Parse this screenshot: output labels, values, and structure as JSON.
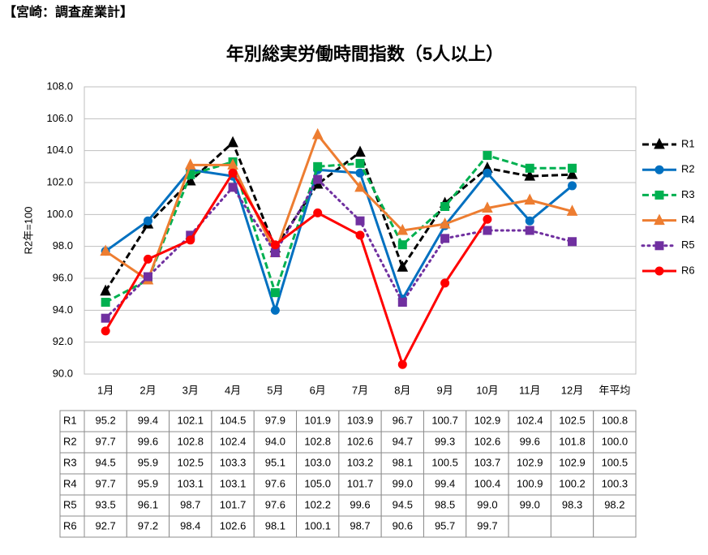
{
  "header": "【宮崎：調査産業計】",
  "chart_data": {
    "type": "line",
    "title": "年別総実労働時間指数（5人以上）",
    "y_label": "R2年=100",
    "categories": [
      "1月",
      "2月",
      "3月",
      "4月",
      "5月",
      "6月",
      "7月",
      "8月",
      "9月",
      "10月",
      "11月",
      "12月"
    ],
    "average_label": "年平均",
    "ylim": [
      90,
      108
    ],
    "yticks": [
      {
        "value": 90,
        "label": "90.0"
      },
      {
        "value": 92,
        "label": "92.0"
      },
      {
        "value": 94,
        "label": "94.0"
      },
      {
        "value": 96,
        "label": "96.0"
      },
      {
        "value": 98,
        "label": "98.0"
      },
      {
        "value": 100,
        "label": "100.0"
      },
      {
        "value": 102,
        "label": "102.0"
      },
      {
        "value": 104,
        "label": "104.0"
      },
      {
        "value": 106,
        "label": "106.0"
      },
      {
        "value": 108,
        "label": "108.0"
      }
    ],
    "grid": true,
    "legend": "right",
    "series": [
      {
        "name": "R1",
        "color": "#000000",
        "dash": "dashed",
        "marker": "triangle",
        "values": [
          95.2,
          99.4,
          102.1,
          104.5,
          97.9,
          101.9,
          103.9,
          96.7,
          100.7,
          102.9,
          102.4,
          102.5
        ],
        "value_labels": [
          "95.2",
          "99.4",
          "102.1",
          "104.5",
          "97.9",
          "101.9",
          "103.9",
          "96.7",
          "100.7",
          "102.9",
          "102.4",
          "102.5"
        ],
        "average": 100.8,
        "average_text": "100.8"
      },
      {
        "name": "R2",
        "color": "#0070c0",
        "dash": "solid",
        "marker": "circle",
        "values": [
          97.7,
          99.6,
          102.8,
          102.4,
          94,
          102.8,
          102.6,
          94.7,
          99.3,
          102.6,
          99.6,
          101.8
        ],
        "value_labels": [
          "97.7",
          "99.6",
          "102.8",
          "102.4",
          "94.0",
          "102.8",
          "102.6",
          "94.7",
          "99.3",
          "102.6",
          "99.6",
          "101.8"
        ],
        "average": 100,
        "average_text": "100.0"
      },
      {
        "name": "R3",
        "color": "#00b050",
        "dash": "dashed",
        "marker": "square",
        "values": [
          94.5,
          95.9,
          102.5,
          103.3,
          95.1,
          103,
          103.2,
          98.1,
          100.5,
          103.7,
          102.9,
          102.9
        ],
        "value_labels": [
          "94.5",
          "95.9",
          "102.5",
          "103.3",
          "95.1",
          "103.0",
          "103.2",
          "98.1",
          "100.5",
          "103.7",
          "102.9",
          "102.9"
        ],
        "average": 100.5,
        "average_text": "100.5"
      },
      {
        "name": "R4",
        "color": "#ed7d31",
        "dash": "solid",
        "marker": "triangle",
        "values": [
          97.7,
          95.9,
          103.1,
          103.1,
          97.6,
          105,
          101.7,
          99,
          99.4,
          100.4,
          100.9,
          100.2
        ],
        "value_labels": [
          "97.7",
          "95.9",
          "103.1",
          "103.1",
          "97.6",
          "105.0",
          "101.7",
          "99.0",
          "99.4",
          "100.4",
          "100.9",
          "100.2"
        ],
        "average": 100.3,
        "average_text": "100.3"
      },
      {
        "name": "R5",
        "color": "#7030a0",
        "dash": "dotted",
        "marker": "square",
        "values": [
          93.5,
          96.1,
          98.7,
          101.7,
          97.6,
          102.2,
          99.6,
          94.5,
          98.5,
          99,
          99,
          98.3
        ],
        "value_labels": [
          "93.5",
          "96.1",
          "98.7",
          "101.7",
          "97.6",
          "102.2",
          "99.6",
          "94.5",
          "98.5",
          "99.0",
          "99.0",
          "98.3"
        ],
        "average": 98.2,
        "average_text": "98.2"
      },
      {
        "name": "R6",
        "color": "#ff0000",
        "dash": "solid",
        "marker": "circle",
        "values": [
          92.7,
          97.2,
          98.4,
          102.6,
          98.1,
          100.1,
          98.7,
          90.6,
          95.7,
          99.7,
          null,
          null
        ],
        "value_labels": [
          "92.7",
          "97.2",
          "98.4",
          "102.6",
          "98.1",
          "100.1",
          "98.7",
          "90.6",
          "95.7",
          "99.7",
          null,
          null
        ]
      }
    ]
  }
}
